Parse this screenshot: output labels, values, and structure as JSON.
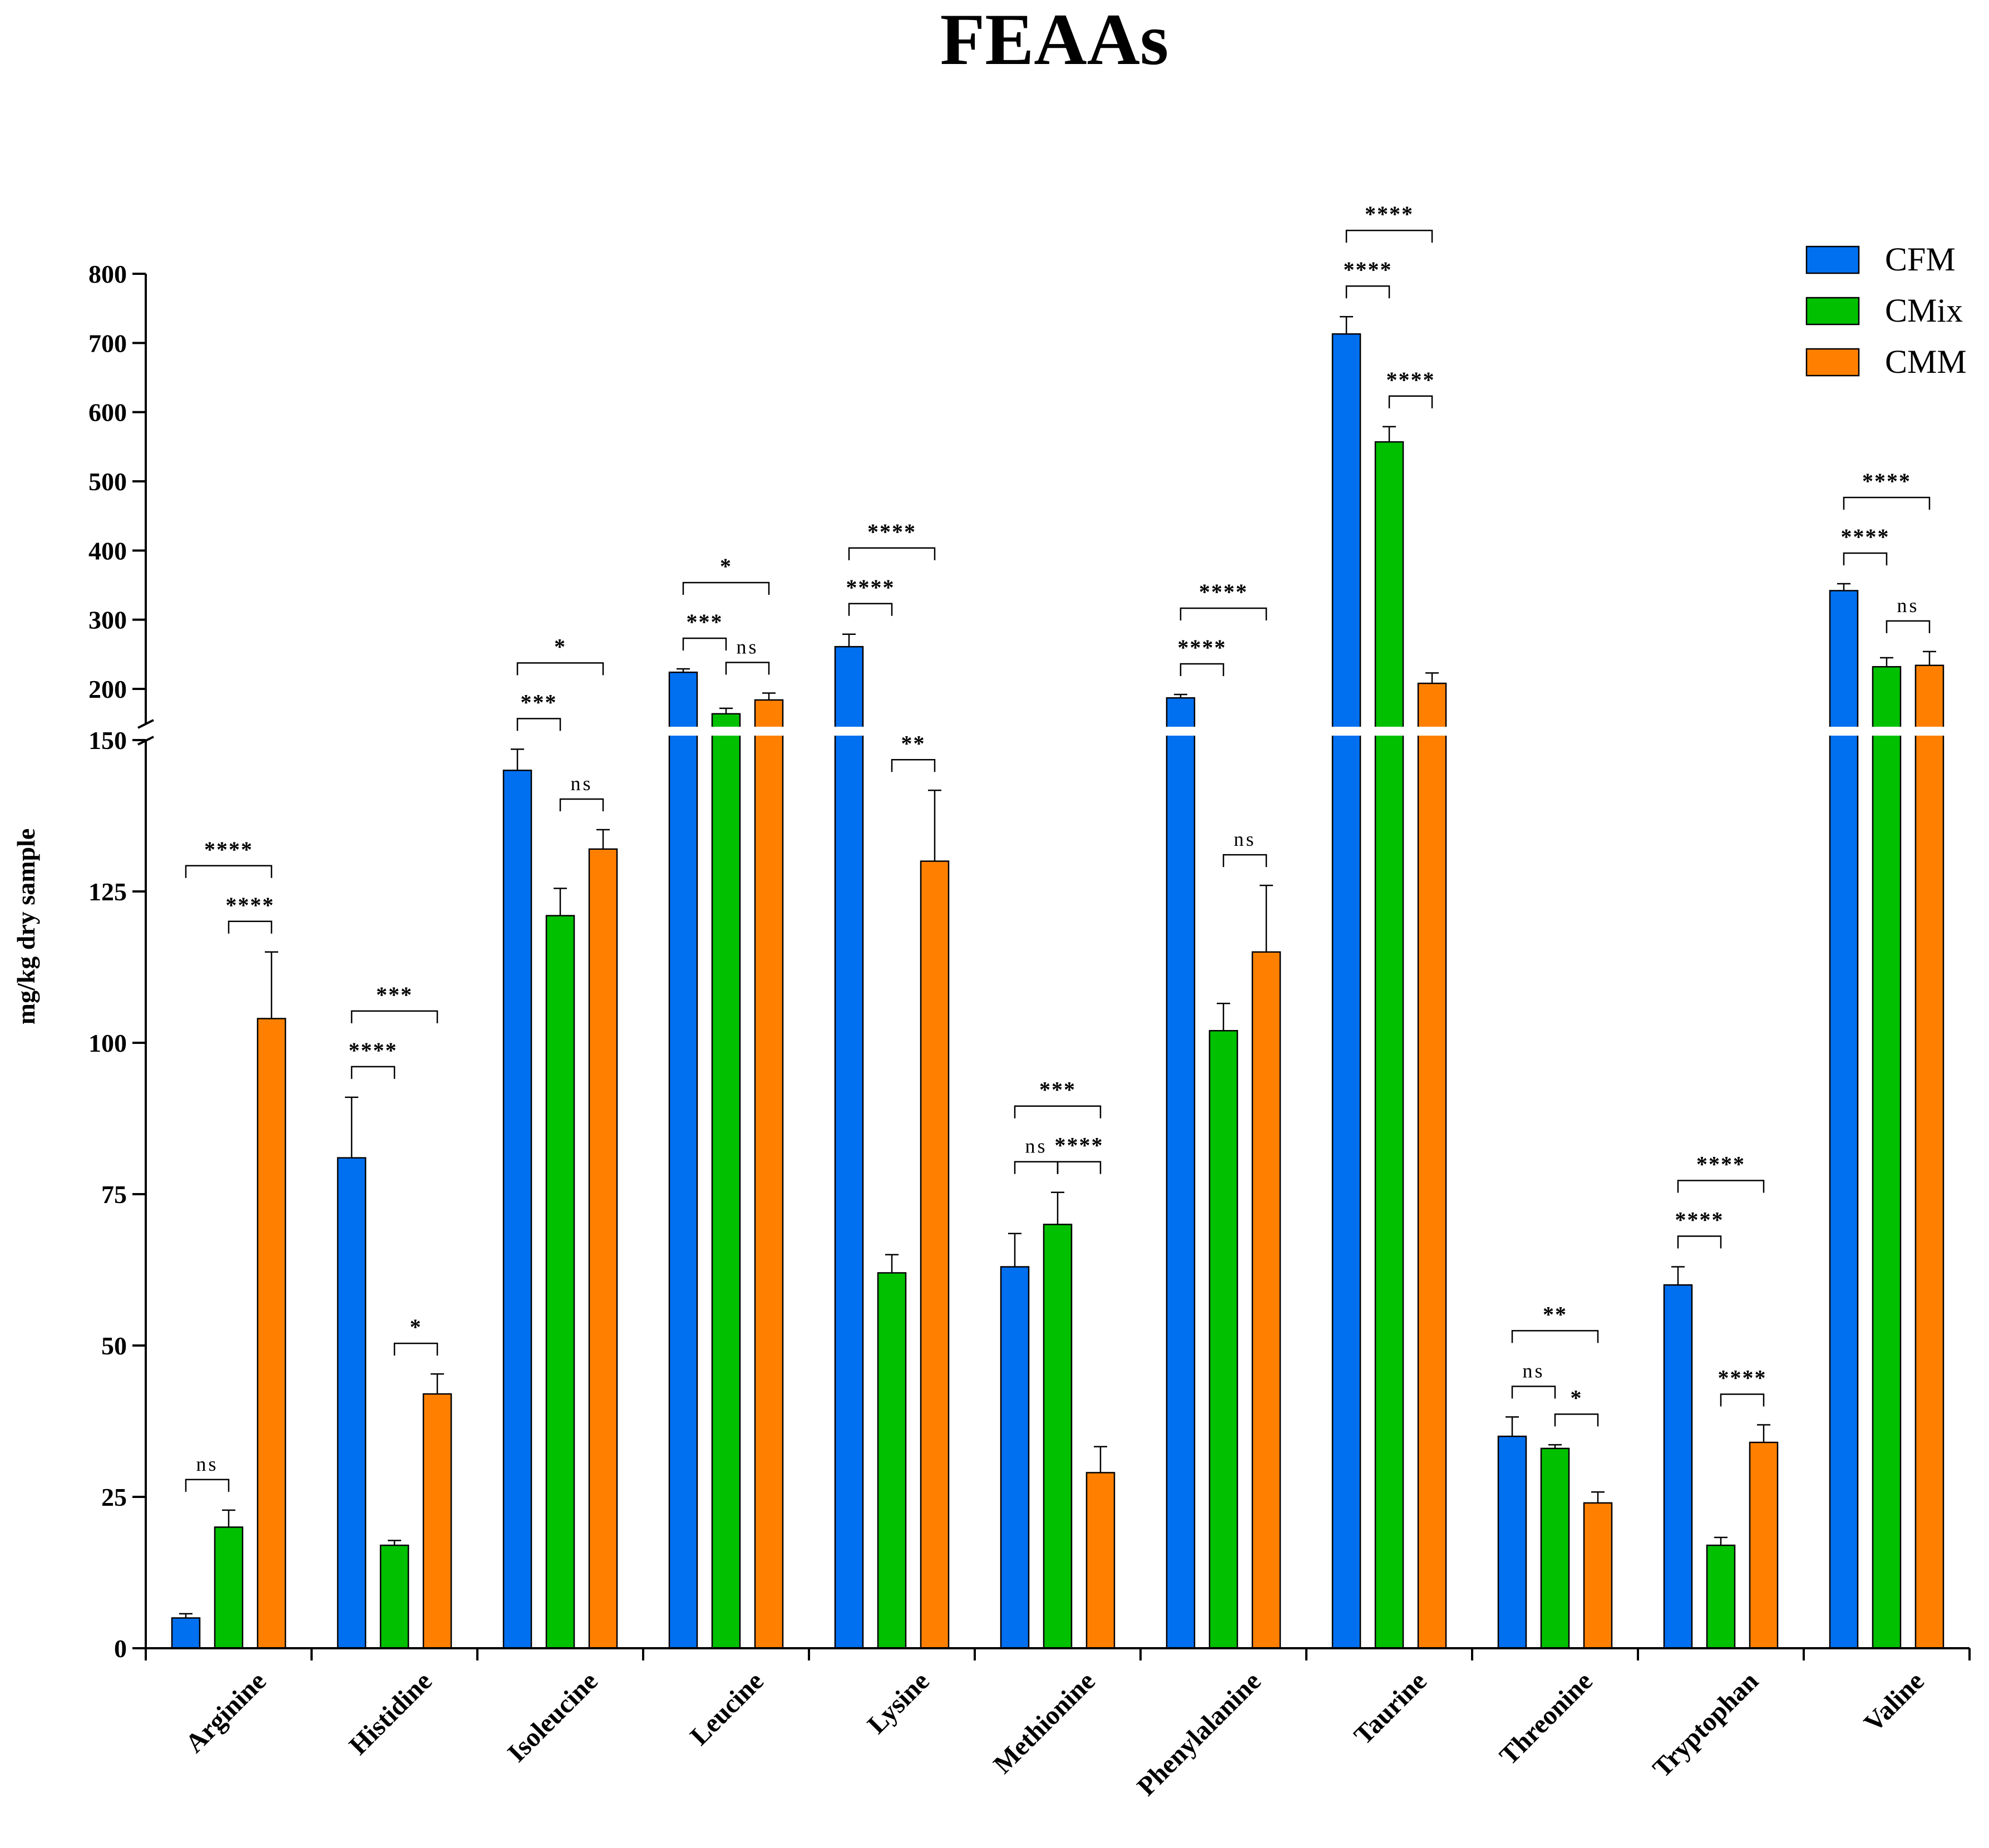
{
  "chart_data": {
    "type": "bar",
    "title": "FEAAs",
    "xlabel": "",
    "ylabel": "mg/kg dry sample",
    "axis_break": {
      "lower_range": [
        0,
        150
      ],
      "upper_range": [
        150,
        800
      ]
    },
    "lower_ticks": [
      0,
      25,
      50,
      75,
      100,
      125,
      150
    ],
    "upper_ticks": [
      200,
      300,
      400,
      500,
      600,
      700,
      800
    ],
    "legend_position": "top-right",
    "colors": {
      "CFM": "#0070f0",
      "CMix": "#00c000",
      "CMM": "#ff8000"
    },
    "categories": [
      "Arginine",
      "Histidine",
      "Isoleucine",
      "Leucine",
      "Lysine",
      "Methionine",
      "Phenylalanine",
      "Taurine",
      "Threonine",
      "Tryptophan",
      "Valine"
    ],
    "series": [
      {
        "name": "CFM",
        "values": [
          5,
          81,
          145,
          224,
          261,
          63,
          187,
          713,
          35,
          60,
          342
        ],
        "errors": [
          0.7,
          10,
          3.5,
          5,
          18,
          5.5,
          5,
          25,
          3.2,
          3,
          10
        ]
      },
      {
        "name": "CMix",
        "values": [
          20,
          17,
          121,
          164,
          62,
          70,
          102,
          557,
          33,
          17,
          232
        ],
        "errors": [
          2.8,
          0.8,
          4.5,
          8,
          3,
          5.3,
          4.5,
          22,
          0.6,
          1.3,
          13
        ]
      },
      {
        "name": "CMM",
        "values": [
          104,
          42,
          132,
          184,
          130,
          29,
          115,
          208,
          24,
          34,
          234
        ],
        "errors": [
          11,
          3.3,
          3.2,
          10,
          11.7,
          4.3,
          11,
          15,
          1.8,
          2.9,
          20
        ]
      }
    ],
    "significance": [
      {
        "category": "Arginine",
        "pairs": [
          {
            "a": 0,
            "b": 1,
            "label": "ns"
          },
          {
            "a": 1,
            "b": 2,
            "label": "****"
          },
          {
            "a": 0,
            "b": 2,
            "label": "****"
          }
        ]
      },
      {
        "category": "Histidine",
        "pairs": [
          {
            "a": 0,
            "b": 1,
            "label": "****"
          },
          {
            "a": 1,
            "b": 2,
            "label": "*"
          },
          {
            "a": 0,
            "b": 2,
            "label": "***"
          }
        ]
      },
      {
        "category": "Isoleucine",
        "pairs": [
          {
            "a": 0,
            "b": 1,
            "label": "***"
          },
          {
            "a": 1,
            "b": 2,
            "label": "ns"
          },
          {
            "a": 0,
            "b": 2,
            "label": "*"
          }
        ]
      },
      {
        "category": "Leucine",
        "pairs": [
          {
            "a": 0,
            "b": 1,
            "label": "***"
          },
          {
            "a": 1,
            "b": 2,
            "label": "ns"
          },
          {
            "a": 0,
            "b": 2,
            "label": "*"
          }
        ]
      },
      {
        "category": "Lysine",
        "pairs": [
          {
            "a": 0,
            "b": 1,
            "label": "****"
          },
          {
            "a": 1,
            "b": 2,
            "label": "**"
          },
          {
            "a": 0,
            "b": 2,
            "label": "****"
          }
        ]
      },
      {
        "category": "Methionine",
        "pairs": [
          {
            "a": 0,
            "b": 1,
            "label": "ns"
          },
          {
            "a": 1,
            "b": 2,
            "label": "****"
          },
          {
            "a": 0,
            "b": 2,
            "label": "***"
          }
        ]
      },
      {
        "category": "Phenylalanine",
        "pairs": [
          {
            "a": 0,
            "b": 1,
            "label": "****"
          },
          {
            "a": 1,
            "b": 2,
            "label": "ns"
          },
          {
            "a": 0,
            "b": 2,
            "label": "****"
          }
        ]
      },
      {
        "category": "Taurine",
        "pairs": [
          {
            "a": 0,
            "b": 1,
            "label": "****"
          },
          {
            "a": 1,
            "b": 2,
            "label": "****"
          },
          {
            "a": 0,
            "b": 2,
            "label": "****"
          }
        ]
      },
      {
        "category": "Threonine",
        "pairs": [
          {
            "a": 0,
            "b": 1,
            "label": "ns"
          },
          {
            "a": 1,
            "b": 2,
            "label": "*"
          },
          {
            "a": 0,
            "b": 2,
            "label": "**"
          }
        ]
      },
      {
        "category": "Tryptophan",
        "pairs": [
          {
            "a": 0,
            "b": 1,
            "label": "****"
          },
          {
            "a": 1,
            "b": 2,
            "label": "****"
          },
          {
            "a": 0,
            "b": 2,
            "label": "****"
          }
        ]
      },
      {
        "category": "Valine",
        "pairs": [
          {
            "a": 0,
            "b": 1,
            "label": "****"
          },
          {
            "a": 1,
            "b": 2,
            "label": "ns"
          },
          {
            "a": 0,
            "b": 2,
            "label": "****"
          }
        ]
      }
    ]
  }
}
